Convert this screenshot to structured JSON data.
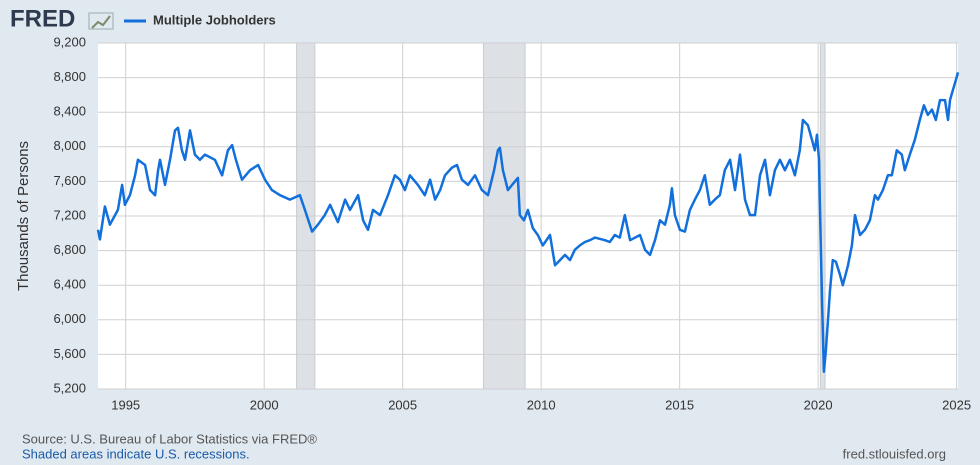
{
  "chart_data": {
    "type": "line",
    "logo": "FRED",
    "ylabel": "Thousands of Persons",
    "source": "Source: U.S. Bureau of Labor Statistics via FRED®",
    "note": "Shaded areas indicate U.S. recessions.",
    "url": "fred.stlouisfed.org",
    "grid": true,
    "xlim": [
      1994.0,
      2025.05
    ],
    "ylim": [
      5200,
      9200
    ],
    "xticks": [
      1995,
      2000,
      2005,
      2010,
      2015,
      2020,
      2025
    ],
    "yticks": [
      {
        "value": 5200,
        "label": "5,200"
      },
      {
        "value": 5600,
        "label": "5,600"
      },
      {
        "value": 6000,
        "label": "6,000"
      },
      {
        "value": 6400,
        "label": "6,400"
      },
      {
        "value": 6800,
        "label": "6,800"
      },
      {
        "value": 7200,
        "label": "7,200"
      },
      {
        "value": 7600,
        "label": "7,600"
      },
      {
        "value": 8000,
        "label": "8,000"
      },
      {
        "value": 8400,
        "label": "8,400"
      },
      {
        "value": 8800,
        "label": "8,800"
      },
      {
        "value": 9200,
        "label": "9,200"
      }
    ],
    "recessions": [
      [
        2001.17,
        2001.83
      ],
      [
        2007.92,
        2009.42
      ],
      [
        2020.08,
        2020.25
      ]
    ],
    "recession_color": "#dde1e6",
    "x": [
      1994.0,
      1994.07,
      1994.25,
      1994.43,
      1994.72,
      1994.87,
      1994.97,
      1995.15,
      1995.34,
      1995.44,
      1995.7,
      1995.88,
      1996.06,
      1996.17,
      1996.24,
      1996.42,
      1996.6,
      1996.78,
      1996.89,
      1997.03,
      1997.14,
      1997.32,
      1997.5,
      1997.68,
      1997.86,
      1998.22,
      1998.48,
      1998.69,
      1998.84,
      1998.98,
      1999.2,
      1999.49,
      1999.78,
      2000.03,
      2000.28,
      2000.57,
      2000.93,
      2001.29,
      2001.47,
      2001.73,
      2001.94,
      2002.19,
      2002.38,
      2002.66,
      2002.92,
      2003.1,
      2003.39,
      2003.57,
      2003.75,
      2003.93,
      2004.18,
      2004.47,
      2004.72,
      2004.9,
      2005.08,
      2005.26,
      2005.55,
      2005.8,
      2005.99,
      2006.17,
      2006.35,
      2006.53,
      2006.78,
      2006.96,
      2007.14,
      2007.36,
      2007.61,
      2007.86,
      2008.08,
      2008.3,
      2008.44,
      2008.51,
      2008.62,
      2008.8,
      2008.95,
      2009.16,
      2009.23,
      2009.38,
      2009.52,
      2009.7,
      2009.88,
      2010.06,
      2010.32,
      2010.5,
      2010.68,
      2010.86,
      2011.04,
      2011.22,
      2011.4,
      2011.58,
      2011.76,
      2011.94,
      2012.3,
      2012.48,
      2012.66,
      2012.84,
      2013.02,
      2013.21,
      2013.57,
      2013.75,
      2013.93,
      2014.11,
      2014.29,
      2014.47,
      2014.65,
      2014.72,
      2014.83,
      2015.01,
      2015.19,
      2015.37,
      2015.55,
      2015.73,
      2015.91,
      2016.09,
      2016.27,
      2016.45,
      2016.63,
      2016.82,
      2017.0,
      2017.18,
      2017.36,
      2017.54,
      2017.72,
      2017.9,
      2018.08,
      2018.26,
      2018.44,
      2018.62,
      2018.8,
      2018.98,
      2019.16,
      2019.34,
      2019.45,
      2019.63,
      2019.78,
      2019.88,
      2019.96,
      2020.03,
      2020.06,
      2020.14,
      2020.21,
      2020.28,
      2020.43,
      2020.53,
      2020.64,
      2020.79,
      2020.89,
      2021.08,
      2021.22,
      2021.33,
      2021.51,
      2021.69,
      2021.87,
      2022.05,
      2022.16,
      2022.34,
      2022.52,
      2022.66,
      2022.84,
      2023.02,
      2023.13,
      2023.31,
      2023.49,
      2023.67,
      2023.82,
      2023.96,
      2024.11,
      2024.25,
      2024.4,
      2024.58,
      2024.69,
      2024.76,
      2024.87,
      2024.97,
      2025.05
    ],
    "series": [
      {
        "name": "Multiple Jobholders",
        "color": "#1170dc",
        "values": [
          7040,
          6930,
          7310,
          7100,
          7270,
          7560,
          7330,
          7440,
          7670,
          7850,
          7790,
          7500,
          7440,
          7730,
          7850,
          7560,
          7850,
          8190,
          8220,
          7960,
          7850,
          8190,
          7910,
          7850,
          7910,
          7850,
          7670,
          7960,
          8020,
          7850,
          7620,
          7730,
          7790,
          7620,
          7500,
          7440,
          7390,
          7440,
          7270,
          7020,
          7100,
          7210,
          7330,
          7130,
          7390,
          7270,
          7440,
          7150,
          7040,
          7270,
          7210,
          7440,
          7670,
          7620,
          7500,
          7670,
          7560,
          7440,
          7620,
          7390,
          7500,
          7670,
          7760,
          7790,
          7620,
          7560,
          7670,
          7500,
          7440,
          7730,
          7960,
          7990,
          7730,
          7500,
          7560,
          7640,
          7210,
          7150,
          7270,
          7060,
          6980,
          6860,
          6980,
          6630,
          6690,
          6750,
          6690,
          6810,
          6860,
          6900,
          6920,
          6950,
          6920,
          6900,
          6980,
          6950,
          7210,
          6920,
          6980,
          6810,
          6750,
          6920,
          7150,
          7100,
          7330,
          7520,
          7210,
          7040,
          7020,
          7270,
          7390,
          7500,
          7670,
          7330,
          7390,
          7440,
          7730,
          7850,
          7500,
          7910,
          7390,
          7210,
          7210,
          7670,
          7850,
          7440,
          7730,
          7850,
          7730,
          7850,
          7670,
          7960,
          8310,
          8250,
          8080,
          7960,
          8140,
          7850,
          7390,
          6230,
          5400,
          5650,
          6340,
          6690,
          6670,
          6520,
          6400,
          6630,
          6860,
          7210,
          6980,
          7040,
          7150,
          7440,
          7390,
          7500,
          7670,
          7670,
          7960,
          7910,
          7730,
          7910,
          8080,
          8310,
          8480,
          8370,
          8430,
          8310,
          8540,
          8540,
          8310,
          8540,
          8660,
          8770,
          8860
        ]
      }
    ]
  }
}
